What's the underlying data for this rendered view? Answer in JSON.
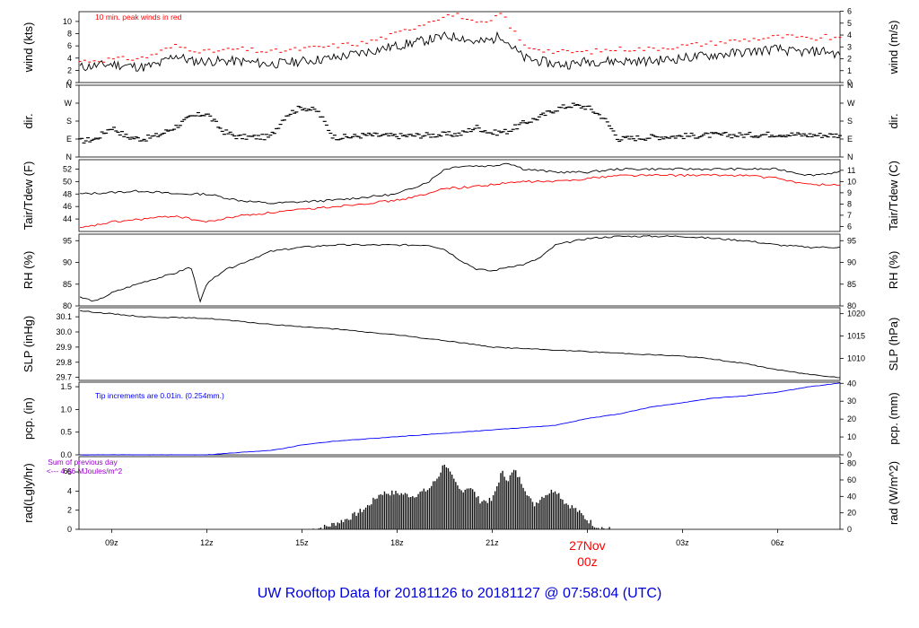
{
  "title": "UW Rooftop Data for 20181126  to  20181127 @ 07:58:04  (UTC)",
  "time_axis": {
    "range_hours": [
      7.97,
      31.97
    ],
    "ticks": [
      {
        "hour": 9,
        "label": "09z"
      },
      {
        "hour": 12,
        "label": "12z"
      },
      {
        "hour": 15,
        "label": "15z"
      },
      {
        "hour": 18,
        "label": "18z"
      },
      {
        "hour": 21,
        "label": "21z"
      },
      {
        "hour": 27,
        "label": "03z"
      },
      {
        "hour": 30,
        "label": "06z"
      }
    ],
    "day_marker": {
      "hour": 24,
      "label_day": "27Nov",
      "label_hour": "00z",
      "color": "#ff0000"
    }
  },
  "colors": {
    "primary": "#000000",
    "peak": "#ff0000",
    "dewpoint": "#ff0000",
    "precip": "#0000ff",
    "radnote": "#9900cc",
    "title": "#0000dd"
  },
  "notes": {
    "wind": "10 min. peak winds in red",
    "pcp": "Tip increments are 0.01in. (0.254mm.)",
    "rad_line1": "Sum of previous day",
    "rad_line2": "<--- 4.66 MJoules/m^2",
    "rad_overlap": "6"
  },
  "chart_data": [
    {
      "panel": "wind",
      "type": "line",
      "left_label": "wind (kts)",
      "right_label": "wind (m/s)",
      "ylim": [
        0,
        11.6
      ],
      "left_ticks": [
        0,
        2,
        4,
        6,
        8,
        10
      ],
      "right_ticks": [
        0,
        1,
        2,
        3,
        4,
        5,
        6
      ],
      "right_factor": 0.5144,
      "series": [
        {
          "role": "mean",
          "x": [
            8.0,
            9.0,
            10.0,
            10.5,
            11.0,
            11.5,
            12.0,
            13.0,
            14.0,
            15.0,
            16.0,
            17.0,
            17.5,
            18.0,
            18.5,
            19.0,
            19.5,
            20.0,
            20.5,
            21.0,
            21.3,
            21.6,
            22.0,
            22.5,
            23.0,
            23.5,
            24.0,
            25.0,
            26.0,
            27.0,
            28.0,
            29.0,
            30.0,
            30.5,
            31.0,
            31.5,
            31.97
          ],
          "y": [
            2.5,
            3.0,
            2.5,
            3.0,
            4.5,
            3.5,
            3.5,
            3.5,
            3.0,
            3.5,
            4.0,
            5.0,
            5.5,
            6.0,
            6.5,
            7.0,
            7.5,
            7.5,
            6.5,
            7.0,
            7.8,
            6.0,
            4.0,
            3.5,
            3.0,
            3.0,
            3.5,
            3.5,
            3.5,
            4.0,
            4.5,
            5.0,
            5.5,
            5.0,
            5.0,
            5.2,
            4.5
          ]
        },
        {
          "role": "peak",
          "x": [
            8.0,
            9.0,
            10.0,
            11.0,
            12.0,
            13.0,
            14.0,
            15.0,
            16.0,
            17.0,
            18.0,
            19.0,
            19.5,
            20.0,
            20.5,
            21.0,
            21.3,
            21.6,
            22.0,
            22.5,
            23.0,
            24.0,
            25.0,
            26.0,
            27.0,
            28.0,
            29.0,
            30.0,
            30.5,
            31.0,
            31.5,
            31.97
          ],
          "y": [
            3.5,
            3.8,
            4.0,
            6.0,
            5.0,
            5.5,
            5.0,
            5.5,
            6.0,
            6.5,
            8.0,
            10.0,
            11.0,
            11.0,
            9.5,
            10.0,
            11.5,
            9.0,
            6.0,
            5.5,
            5.0,
            5.0,
            5.5,
            5.5,
            6.0,
            6.5,
            7.0,
            7.5,
            7.5,
            7.0,
            7.5,
            7.0
          ]
        }
      ]
    },
    {
      "panel": "dir",
      "type": "scatter",
      "left_label": "dir.",
      "right_label": "dir.",
      "ylim": [
        0,
        360
      ],
      "tick_labels": [
        "N",
        "E",
        "S",
        "W",
        "N"
      ],
      "tick_values": [
        0,
        90,
        180,
        270,
        360
      ],
      "x": [
        8.0,
        8.5,
        9.0,
        9.5,
        10.0,
        10.5,
        11.0,
        11.5,
        12.0,
        12.5,
        13.0,
        13.5,
        14.0,
        14.5,
        15.0,
        15.5,
        16.0,
        16.5,
        17.0,
        18.0,
        19.0,
        20.0,
        20.5,
        21.0,
        21.5,
        22.0,
        22.5,
        23.0,
        23.5,
        24.0,
        24.5,
        25.0,
        26.0,
        27.0,
        28.0,
        29.0,
        30.0,
        31.0,
        31.97
      ],
      "y": [
        80,
        90,
        150,
        100,
        90,
        110,
        150,
        200,
        220,
        130,
        100,
        100,
        100,
        210,
        250,
        230,
        100,
        100,
        110,
        105,
        110,
        115,
        150,
        120,
        130,
        170,
        200,
        240,
        260,
        250,
        200,
        90,
        100,
        105,
        110,
        110,
        115,
        110,
        110
      ]
    },
    {
      "panel": "temp",
      "type": "line",
      "left_label": "Tair/Tdew (F)",
      "right_label": "Tair/Tdew (C)",
      "ylim": [
        42,
        53.5
      ],
      "left_ticks": [
        44,
        46,
        48,
        50,
        52
      ],
      "right_ticks": [
        6,
        7,
        8,
        9,
        10,
        11
      ],
      "series": [
        {
          "name": "Tair",
          "x": [
            8.0,
            10.0,
            11.0,
            12.0,
            13.0,
            14.0,
            16.0,
            17.0,
            18.0,
            18.5,
            19.0,
            19.5,
            20.0,
            21.0,
            21.5,
            22.0,
            23.0,
            24.0,
            25.0,
            26.0,
            27.0,
            28.0,
            29.0,
            30.0,
            30.5,
            31.0,
            31.97
          ],
          "y": [
            48.0,
            48.5,
            48.0,
            48.0,
            47.0,
            46.5,
            47.0,
            47.5,
            48.0,
            49.0,
            50.0,
            52.0,
            52.5,
            52.5,
            53.0,
            52.0,
            51.5,
            51.5,
            52.0,
            52.0,
            52.0,
            52.0,
            52.0,
            52.0,
            51.5,
            51.0,
            51.5
          ]
        },
        {
          "name": "Tdew",
          "x": [
            8.0,
            9.0,
            10.0,
            11.0,
            12.0,
            13.0,
            14.0,
            15.0,
            16.0,
            17.0,
            18.0,
            19.0,
            19.5,
            20.0,
            21.0,
            22.0,
            23.0,
            24.0,
            25.0,
            26.0,
            27.0,
            28.0,
            29.0,
            30.0,
            30.5,
            31.0,
            31.97
          ],
          "y": [
            42.5,
            43.5,
            44.0,
            44.5,
            43.5,
            44.5,
            45.0,
            45.5,
            46.0,
            46.5,
            47.0,
            48.0,
            49.0,
            49.0,
            49.5,
            50.0,
            50.0,
            50.5,
            51.0,
            51.0,
            51.0,
            51.0,
            51.0,
            50.5,
            50.0,
            49.5,
            49.5
          ]
        }
      ]
    },
    {
      "panel": "rh",
      "type": "line",
      "left_label": "RH (%)",
      "right_label": "RH (%)",
      "ylim": [
        80,
        96.5
      ],
      "left_ticks": [
        80,
        85,
        90,
        95
      ],
      "right_ticks": [
        80,
        85,
        90,
        95
      ],
      "series": [
        {
          "name": "RH",
          "x": [
            8.0,
            8.5,
            9.0,
            10.0,
            11.0,
            11.5,
            11.8,
            12.0,
            12.5,
            13.0,
            14.0,
            15.0,
            16.0,
            17.0,
            18.0,
            19.0,
            19.5,
            20.0,
            20.5,
            21.0,
            21.5,
            22.0,
            22.5,
            23.0,
            24.0,
            25.0,
            26.0,
            27.0,
            28.0,
            29.0,
            30.0,
            31.0,
            31.97
          ],
          "y": [
            82.0,
            81.0,
            83.0,
            85.5,
            87.5,
            89.0,
            81.0,
            85.0,
            88.0,
            89.5,
            92.5,
            93.5,
            94.0,
            94.0,
            94.0,
            94.0,
            93.0,
            90.5,
            88.5,
            88.0,
            89.0,
            89.5,
            91.0,
            94.0,
            95.5,
            96.0,
            96.0,
            96.0,
            95.5,
            95.0,
            94.0,
            93.5,
            93.5
          ]
        }
      ]
    },
    {
      "panel": "slp",
      "type": "line",
      "left_label": "SLP (inHg)",
      "right_label": "SLP (hPa)",
      "ylim": [
        29.68,
        30.16
      ],
      "left_ticks": [
        29.7,
        29.8,
        29.9,
        30.0,
        30.1
      ],
      "right_ticks": [
        1010,
        1015,
        1020
      ],
      "right_factor": 33.8639,
      "series": [
        {
          "name": "SLP",
          "x": [
            8.0,
            10.0,
            12.0,
            14.0,
            16.0,
            18.0,
            20.0,
            21.0,
            22.0,
            23.0,
            24.0,
            25.0,
            26.0,
            27.0,
            28.0,
            29.0,
            30.0,
            31.0,
            31.97
          ],
          "y": [
            30.14,
            30.1,
            30.09,
            30.05,
            30.02,
            29.98,
            29.93,
            29.9,
            29.89,
            29.88,
            29.87,
            29.86,
            29.85,
            29.84,
            29.82,
            29.79,
            29.75,
            29.72,
            29.7
          ]
        }
      ]
    },
    {
      "panel": "pcp",
      "type": "line",
      "left_label": "pcp. (in)",
      "right_label": "pcp. (mm)",
      "ylim": [
        0,
        1.6
      ],
      "left_ticks": [
        0.0,
        0.5,
        1.0,
        1.5
      ],
      "right_ticks": [
        0,
        10,
        20,
        30,
        40
      ],
      "right_factor": 25.4,
      "series": [
        {
          "name": "cumulative precipitation",
          "x": [
            8.0,
            12.0,
            14.0,
            14.5,
            15.0,
            16.0,
            17.0,
            18.0,
            19.0,
            20.0,
            21.0,
            22.0,
            23.0,
            24.0,
            25.0,
            26.0,
            27.0,
            28.0,
            29.0,
            30.0,
            31.0,
            31.97
          ],
          "y": [
            0.0,
            0.0,
            0.1,
            0.15,
            0.22,
            0.3,
            0.35,
            0.4,
            0.45,
            0.5,
            0.55,
            0.6,
            0.65,
            0.8,
            0.9,
            1.05,
            1.15,
            1.25,
            1.3,
            1.38,
            1.5,
            1.58
          ]
        }
      ]
    },
    {
      "panel": "rad",
      "type": "area",
      "left_label": "rad(Lgly/hr)",
      "right_label": "rad (W/m^2)",
      "ylim": [
        0,
        7.6
      ],
      "left_ticks": [
        0,
        2,
        4,
        6
      ],
      "right_ticks": [
        0,
        20,
        40,
        60,
        80
      ],
      "right_factor": 11.622,
      "series": [
        {
          "name": "solar radiation",
          "x": [
            15.3,
            15.8,
            16.5,
            17.0,
            17.5,
            18.0,
            18.5,
            19.0,
            19.3,
            19.5,
            19.8,
            20.0,
            20.3,
            20.6,
            21.0,
            21.3,
            21.5,
            21.7,
            22.0,
            22.3,
            22.6,
            23.0,
            23.3,
            23.6,
            24.0,
            24.3,
            24.7
          ],
          "y": [
            0.0,
            0.3,
            1.2,
            2.2,
            3.8,
            3.8,
            3.5,
            4.2,
            5.5,
            7.0,
            5.0,
            4.0,
            4.5,
            3.0,
            3.0,
            6.0,
            5.2,
            6.2,
            4.5,
            2.5,
            3.5,
            4.2,
            2.8,
            2.2,
            1.0,
            0.3,
            0.0
          ]
        }
      ]
    }
  ]
}
